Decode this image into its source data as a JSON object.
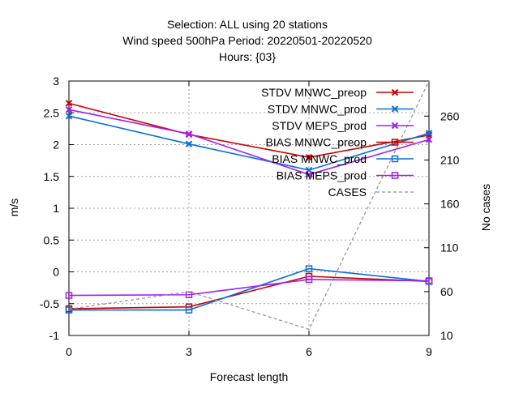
{
  "chart_data": {
    "type": "line",
    "title_lines": [
      "Selection: ALL using     20 stations",
      "Wind speed 500hPa   Period: 20220501-20220520",
      "Hours: {03}"
    ],
    "xlabel": "Forecast length",
    "ylabel": "m/s",
    "y2label": "No cases",
    "x": [
      0,
      3,
      6,
      9
    ],
    "xlim": [
      0,
      9
    ],
    "ylim": [
      -1,
      3
    ],
    "y2lim": [
      10,
      300
    ],
    "xticks": [
      0,
      3,
      6,
      9
    ],
    "yticks": [
      -1,
      -0.5,
      0,
      0.5,
      1,
      1.5,
      2,
      2.5,
      3
    ],
    "ytick_labels": [
      "-1",
      "-0.5",
      "0",
      "0.5",
      "1",
      "1.5",
      "2",
      "2.5",
      "3"
    ],
    "y2ticks": [
      10,
      60,
      110,
      160,
      210,
      260
    ],
    "grid": true,
    "legend_position": "top-right",
    "series": [
      {
        "name": "STDV MNWC_preop",
        "color": "#cc0000",
        "marker": "x",
        "dash": "solid",
        "axis": "y",
        "values": [
          2.65,
          2.16,
          1.8,
          2.15
        ]
      },
      {
        "name": "STDV MNWC_prod",
        "color": "#0a6fd6",
        "marker": "x",
        "dash": "solid",
        "axis": "y",
        "values": [
          2.45,
          2.01,
          1.6,
          2.18
        ]
      },
      {
        "name": "STDV MEPS_prod",
        "color": "#a020f0",
        "marker": "x",
        "dash": "solid",
        "axis": "y",
        "values": [
          2.55,
          2.17,
          1.53,
          2.08
        ]
      },
      {
        "name": "BIAS MNWC_preop",
        "color": "#cc0000",
        "marker": "square",
        "dash": "solid",
        "axis": "y",
        "values": [
          -0.58,
          -0.55,
          -0.07,
          -0.15
        ]
      },
      {
        "name": "BIAS MNWC_prod",
        "color": "#0a6fd6",
        "marker": "square",
        "dash": "solid",
        "axis": "y",
        "values": [
          -0.6,
          -0.6,
          0.05,
          -0.15
        ]
      },
      {
        "name": "BIAS MEPS_prod",
        "color": "#a020f0",
        "marker": "square",
        "dash": "solid",
        "axis": "y",
        "values": [
          -0.37,
          -0.36,
          -0.12,
          -0.14
        ]
      },
      {
        "name": "CASES",
        "color": "#909090",
        "marker": "none",
        "dash": "dashed",
        "axis": "y2",
        "values": [
          40,
          60,
          17,
          300
        ]
      }
    ]
  }
}
